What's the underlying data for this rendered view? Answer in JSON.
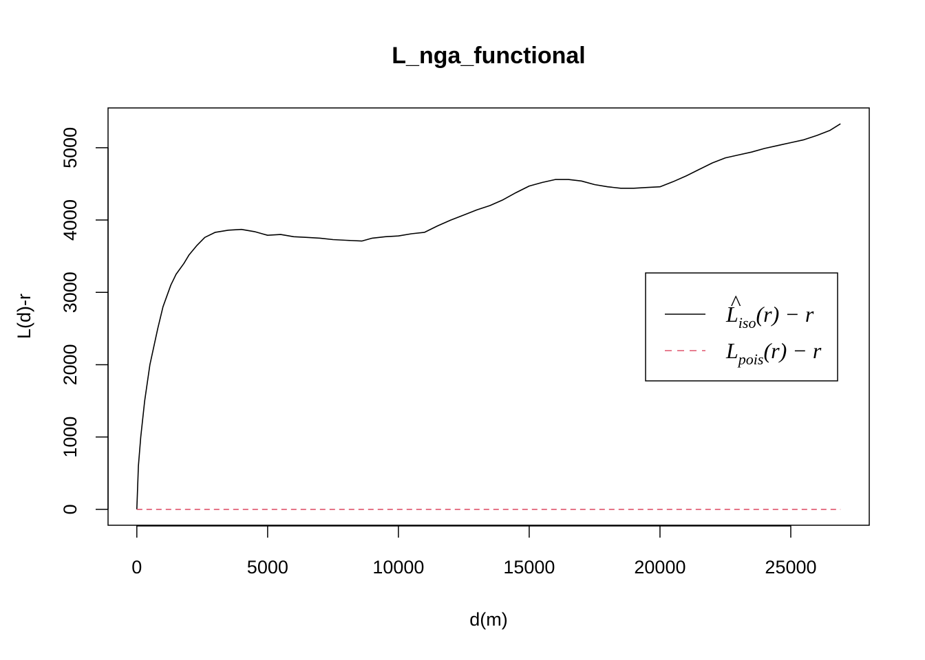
{
  "chart_data": {
    "type": "line",
    "title": "L_nga_functional",
    "xlabel": "d(m)",
    "ylabel": "L(d)-r",
    "xlim": [
      -1100,
      28000
    ],
    "ylim": [
      -220,
      5550
    ],
    "x_ticks": [
      0,
      5000,
      10000,
      15000,
      20000,
      25000
    ],
    "y_ticks": [
      0,
      1000,
      2000,
      3000,
      4000,
      5000
    ],
    "grid": false,
    "legend_position": "right",
    "series": [
      {
        "name": "L̂iso(r) − r",
        "color": "#000000",
        "dash": "solid",
        "x": [
          0,
          60,
          150,
          300,
          500,
          800,
          1000,
          1300,
          1500,
          1800,
          2000,
          2300,
          2600,
          3000,
          3500,
          4000,
          4500,
          5000,
          5500,
          6000,
          6500,
          7000,
          7500,
          8000,
          8600,
          9000,
          9500,
          10000,
          10500,
          11000,
          11500,
          12000,
          12500,
          13000,
          13500,
          14000,
          14500,
          15000,
          15500,
          16000,
          16500,
          17000,
          17500,
          18000,
          18500,
          19000,
          19500,
          20000,
          20500,
          21000,
          21500,
          22000,
          22500,
          23000,
          23500,
          24000,
          24500,
          25000,
          25500,
          26000,
          26500,
          26900
        ],
        "y": [
          0,
          600,
          1000,
          1500,
          2000,
          2500,
          2800,
          3100,
          3250,
          3400,
          3520,
          3650,
          3760,
          3830,
          3860,
          3870,
          3840,
          3790,
          3800,
          3770,
          3760,
          3750,
          3730,
          3720,
          3710,
          3750,
          3770,
          3780,
          3810,
          3830,
          3920,
          4000,
          4070,
          4140,
          4200,
          4280,
          4380,
          4470,
          4520,
          4560,
          4560,
          4540,
          4490,
          4460,
          4440,
          4440,
          4450,
          4460,
          4530,
          4610,
          4700,
          4790,
          4860,
          4900,
          4940,
          4990,
          5030,
          5070,
          5110,
          5170,
          5240,
          5330
        ]
      },
      {
        "name": "Lpois(r) − r",
        "color": "#DF536B",
        "dash": "dashed",
        "x": [
          0,
          26900
        ],
        "y": [
          0,
          0
        ]
      }
    ]
  },
  "legend": {
    "items": [
      {
        "main": "L",
        "hat": "^",
        "sub": "iso",
        "tail": "(r) − r",
        "color": "#000000",
        "dash": ""
      },
      {
        "main": "L",
        "hat": "",
        "sub": "pois",
        "tail": "(r) − r",
        "color": "#DF536B",
        "dash": "10 8"
      }
    ]
  }
}
